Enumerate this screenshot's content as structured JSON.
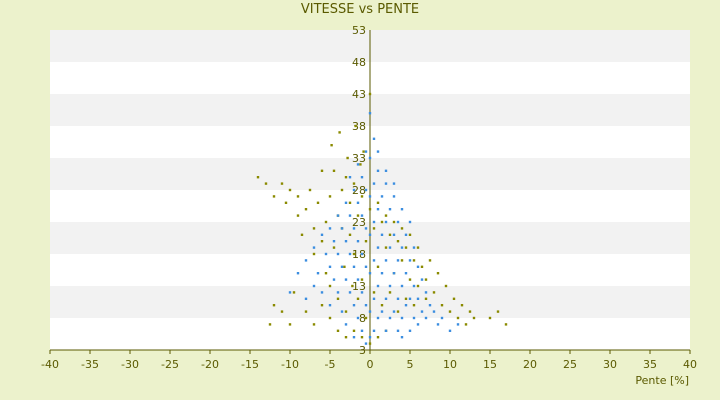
{
  "chart_data": {
    "type": "scatter",
    "title": "VITESSE vs PENTE",
    "xlabel": "Pente [%]",
    "ylabel": "",
    "xlim": [
      -40,
      40
    ],
    "ylim": [
      3,
      53
    ],
    "x_ticks": [
      "-40",
      "-35",
      "-30",
      "-25",
      "-20",
      "-15",
      "-10",
      "-5",
      "0",
      "5",
      "10",
      "15",
      "20",
      "25",
      "30",
      "35",
      "40"
    ],
    "y_ticks": [
      "3",
      "8",
      "13",
      "18",
      "23",
      "28",
      "33",
      "38",
      "43",
      "48",
      "53"
    ],
    "grid": "horizontal-bands",
    "legend": "none",
    "colors": {
      "background": "#ecf2cc",
      "plot_band_light": "#ffffff",
      "plot_band_dark": "#f2f2f2",
      "axis": "#5a5a00",
      "series_blue": "#3c8ee0",
      "series_olive": "#8a8a00"
    },
    "series": [
      {
        "color": "#8a8a00",
        "points": [
          [
            -14,
            30
          ],
          [
            -13,
            29
          ],
          [
            -12,
            27
          ],
          [
            -11,
            29
          ],
          [
            -10.5,
            26
          ],
          [
            -10,
            28
          ],
          [
            -9,
            24
          ],
          [
            -9,
            27
          ],
          [
            -8.5,
            21
          ],
          [
            -8,
            25
          ],
          [
            -7.5,
            28
          ],
          [
            -7,
            22
          ],
          [
            -7,
            18
          ],
          [
            -6.5,
            26
          ],
          [
            -6,
            31
          ],
          [
            -6,
            20
          ],
          [
            -5.5,
            23
          ],
          [
            -5.5,
            15
          ],
          [
            -5,
            27
          ],
          [
            -5,
            13
          ],
          [
            -4.8,
            35
          ],
          [
            -4.5,
            19
          ],
          [
            -4.5,
            31
          ],
          [
            -4,
            24
          ],
          [
            -4,
            11
          ],
          [
            -3.8,
            37
          ],
          [
            -3.5,
            22
          ],
          [
            -3.5,
            28
          ],
          [
            -3.2,
            16
          ],
          [
            -3,
            30
          ],
          [
            -3,
            9
          ],
          [
            -2.8,
            33
          ],
          [
            -2.5,
            21
          ],
          [
            -2.5,
            26
          ],
          [
            -2.2,
            13
          ],
          [
            -2,
            29
          ],
          [
            -2,
            18
          ],
          [
            -1.8,
            38
          ],
          [
            -1.5,
            24
          ],
          [
            -1.5,
            11
          ],
          [
            -1.2,
            32
          ],
          [
            -1,
            27
          ],
          [
            -1,
            14
          ],
          [
            -0.8,
            34
          ],
          [
            -0.5,
            20
          ],
          [
            -0.5,
            8
          ],
          [
            0,
            25
          ],
          [
            0,
            43
          ],
          [
            0.5,
            22
          ],
          [
            0.5,
            12
          ],
          [
            1,
            26
          ],
          [
            1,
            16
          ],
          [
            1.5,
            23
          ],
          [
            1.5,
            10
          ],
          [
            2,
            24
          ],
          [
            2,
            19
          ],
          [
            2.5,
            21
          ],
          [
            2.5,
            12
          ],
          [
            3,
            23
          ],
          [
            3,
            15
          ],
          [
            3.5,
            20
          ],
          [
            3.5,
            9
          ],
          [
            4,
            22
          ],
          [
            4,
            17
          ],
          [
            4.5,
            19
          ],
          [
            4.5,
            11
          ],
          [
            5,
            21
          ],
          [
            5,
            14
          ],
          [
            5.5,
            17
          ],
          [
            5.5,
            10
          ],
          [
            6,
            19
          ],
          [
            6,
            13
          ],
          [
            6.5,
            16
          ],
          [
            7,
            14
          ],
          [
            7,
            11
          ],
          [
            7.5,
            17
          ],
          [
            8,
            12
          ],
          [
            8.5,
            15
          ],
          [
            9,
            10
          ],
          [
            9.5,
            13
          ],
          [
            10,
            9
          ],
          [
            10.5,
            11
          ],
          [
            11,
            8
          ],
          [
            11.5,
            10
          ],
          [
            12,
            7
          ],
          [
            12.5,
            9
          ],
          [
            13,
            8
          ],
          [
            15,
            8
          ],
          [
            16,
            9
          ],
          [
            17,
            7
          ],
          [
            -12.5,
            7
          ],
          [
            -10,
            7
          ],
          [
            -12,
            10
          ],
          [
            -11,
            9
          ],
          [
            -9.5,
            12
          ],
          [
            -8,
            9
          ],
          [
            -7,
            7
          ],
          [
            -6,
            10
          ],
          [
            -5,
            8
          ],
          [
            -4,
            6
          ],
          [
            -3,
            5
          ],
          [
            -2,
            6
          ],
          [
            -1,
            5
          ],
          [
            0,
            4
          ],
          [
            1,
            5
          ],
          [
            2,
            6
          ]
        ]
      },
      {
        "color": "#3c8ee0",
        "points": [
          [
            -10,
            12
          ],
          [
            -9,
            15
          ],
          [
            -8,
            11
          ],
          [
            -8,
            17
          ],
          [
            -7,
            13
          ],
          [
            -7,
            19
          ],
          [
            -6.5,
            15
          ],
          [
            -6,
            21
          ],
          [
            -6,
            12
          ],
          [
            -5.5,
            18
          ],
          [
            -5,
            22
          ],
          [
            -5,
            16
          ],
          [
            -5,
            10
          ],
          [
            -4.5,
            20
          ],
          [
            -4.5,
            14
          ],
          [
            -4,
            24
          ],
          [
            -4,
            18
          ],
          [
            -4,
            12
          ],
          [
            -3.5,
            22
          ],
          [
            -3.5,
            16
          ],
          [
            -3.5,
            9
          ],
          [
            -3,
            26
          ],
          [
            -3,
            20
          ],
          [
            -3,
            14
          ],
          [
            -3,
            7
          ],
          [
            -2.5,
            24
          ],
          [
            -2.5,
            18
          ],
          [
            -2.5,
            12
          ],
          [
            -2,
            28
          ],
          [
            -2,
            22
          ],
          [
            -2,
            16
          ],
          [
            -2,
            10
          ],
          [
            -2,
            5
          ],
          [
            -1.5,
            26
          ],
          [
            -1.5,
            20
          ],
          [
            -1.5,
            14
          ],
          [
            -1.5,
            8
          ],
          [
            -1,
            30
          ],
          [
            -1,
            24
          ],
          [
            -1,
            18
          ],
          [
            -1,
            12
          ],
          [
            -1,
            6
          ],
          [
            -0.5,
            28
          ],
          [
            -0.5,
            22
          ],
          [
            -0.5,
            16
          ],
          [
            -0.5,
            10
          ],
          [
            -0.5,
            4
          ],
          [
            0,
            33
          ],
          [
            0,
            27
          ],
          [
            0,
            21
          ],
          [
            0,
            15
          ],
          [
            0,
            9
          ],
          [
            0,
            5
          ],
          [
            0.5,
            29
          ],
          [
            0.5,
            23
          ],
          [
            0.5,
            17
          ],
          [
            0.5,
            11
          ],
          [
            0.5,
            6
          ],
          [
            1,
            31
          ],
          [
            1,
            25
          ],
          [
            1,
            19
          ],
          [
            1,
            13
          ],
          [
            1,
            8
          ],
          [
            1.5,
            27
          ],
          [
            1.5,
            21
          ],
          [
            1.5,
            15
          ],
          [
            1.5,
            9
          ],
          [
            2,
            29
          ],
          [
            2,
            23
          ],
          [
            2,
            17
          ],
          [
            2,
            11
          ],
          [
            2,
            6
          ],
          [
            2.5,
            25
          ],
          [
            2.5,
            19
          ],
          [
            2.5,
            13
          ],
          [
            2.5,
            8
          ],
          [
            3,
            27
          ],
          [
            3,
            21
          ],
          [
            3,
            15
          ],
          [
            3,
            9
          ],
          [
            3.5,
            23
          ],
          [
            3.5,
            17
          ],
          [
            3.5,
            11
          ],
          [
            3.5,
            6
          ],
          [
            4,
            25
          ],
          [
            4,
            19
          ],
          [
            4,
            13
          ],
          [
            4,
            8
          ],
          [
            4.5,
            21
          ],
          [
            4.5,
            15
          ],
          [
            4.5,
            10
          ],
          [
            5,
            23
          ],
          [
            5,
            17
          ],
          [
            5,
            11
          ],
          [
            5,
            6
          ],
          [
            5.5,
            19
          ],
          [
            5.5,
            13
          ],
          [
            5.5,
            8
          ],
          [
            6,
            16
          ],
          [
            6,
            11
          ],
          [
            6,
            7
          ],
          [
            6.5,
            14
          ],
          [
            6.5,
            9
          ],
          [
            7,
            12
          ],
          [
            7,
            8
          ],
          [
            7.5,
            10
          ],
          [
            8,
            9
          ],
          [
            8.5,
            7
          ],
          [
            9,
            8
          ],
          [
            10,
            6
          ],
          [
            11,
            7
          ],
          [
            4,
            5
          ],
          [
            0.5,
            36
          ],
          [
            -0.5,
            34
          ],
          [
            0,
            40
          ],
          [
            1,
            34
          ],
          [
            -1.5,
            32
          ],
          [
            2,
            31
          ],
          [
            -2.5,
            30
          ],
          [
            3,
            29
          ]
        ]
      }
    ]
  }
}
